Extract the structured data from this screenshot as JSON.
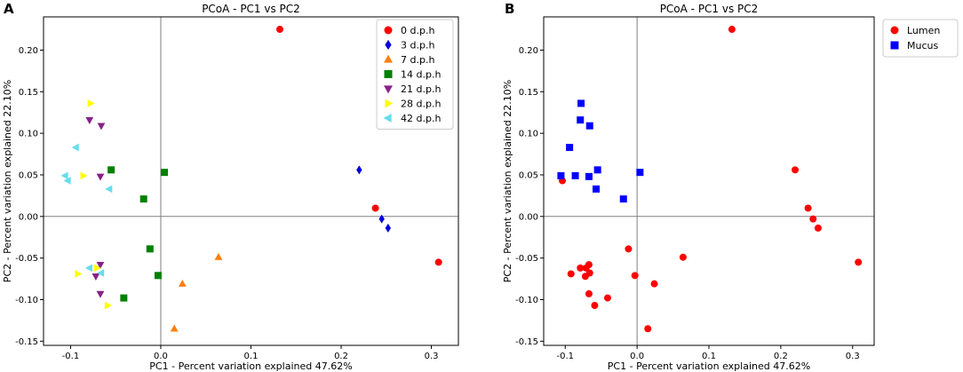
{
  "panels": [
    {
      "panel_label": "A",
      "chart_data": {
        "type": "scatter",
        "title": "PCoA - PC1 vs PC2",
        "xlabel": "PC1 - Percent variation explained 47.62%",
        "ylabel": "PC2 - Percent variation explained 22.10%",
        "xlim": [
          -0.13,
          0.33
        ],
        "ylim": [
          -0.155,
          0.24
        ],
        "xticks": [
          -0.1,
          0.0,
          0.1,
          0.2,
          0.3
        ],
        "xtick_labels": [
          "-0.1",
          "0.0",
          "0.1",
          "0.2",
          "0.3"
        ],
        "yticks": [
          -0.15,
          -0.1,
          -0.05,
          0.0,
          0.05,
          0.1,
          0.15,
          0.2
        ],
        "ytick_labels": [
          "-0.15",
          "-0.10",
          "-0.05",
          "0.00",
          "0.05",
          "0.10",
          "0.15",
          "0.20"
        ],
        "zero_lines": true,
        "legend_position": "upper-right",
        "series": [
          {
            "name": "0 d.p.h",
            "marker": "circle",
            "color": "#ff0000",
            "points": [
              [
                0.132,
                0.225
              ],
              [
                0.238,
                0.01
              ],
              [
                0.308,
                -0.055
              ]
            ]
          },
          {
            "name": "3 d.p.h",
            "marker": "diamond",
            "color": "#0000dd",
            "points": [
              [
                0.22,
                0.056
              ],
              [
                0.245,
                -0.003
              ],
              [
                0.252,
                -0.014
              ]
            ]
          },
          {
            "name": "7 d.p.h",
            "marker": "triangle-up",
            "color": "#ff7f0e",
            "points": [
              [
                0.064,
                -0.049
              ],
              [
                0.024,
                -0.081
              ],
              [
                0.015,
                -0.135
              ]
            ]
          },
          {
            "name": "14 d.p.h",
            "marker": "square",
            "color": "#008000",
            "points": [
              [
                -0.055,
                0.056
              ],
              [
                0.004,
                0.053
              ],
              [
                -0.019,
                0.021
              ],
              [
                -0.012,
                -0.039
              ],
              [
                -0.003,
                -0.071
              ],
              [
                -0.041,
                -0.098
              ]
            ]
          },
          {
            "name": "21 d.p.h",
            "marker": "triangle-down",
            "color": "#882288",
            "points": [
              [
                -0.079,
                0.116
              ],
              [
                -0.066,
                0.109
              ],
              [
                -0.067,
                0.048
              ],
              [
                -0.067,
                -0.058
              ],
              [
                -0.072,
                -0.072
              ],
              [
                -0.067,
                -0.093
              ]
            ]
          },
          {
            "name": "28 d.p.h",
            "marker": "triangle-right",
            "color": "#ffff00",
            "points": [
              [
                -0.078,
                0.136
              ],
              [
                -0.086,
                0.049
              ],
              [
                -0.092,
                -0.069
              ],
              [
                -0.071,
                -0.062
              ],
              [
                -0.059,
                -0.107
              ]
            ]
          },
          {
            "name": "42 d.p.h",
            "marker": "triangle-left",
            "color": "#66ddee",
            "points": [
              [
                -0.094,
                0.083
              ],
              [
                -0.106,
                0.049
              ],
              [
                -0.103,
                0.043
              ],
              [
                -0.057,
                0.033
              ],
              [
                -0.079,
                -0.062
              ],
              [
                -0.066,
                -0.068
              ]
            ]
          }
        ]
      }
    },
    {
      "panel_label": "B",
      "chart_data": {
        "type": "scatter",
        "title": "PCoA - PC1 vs PC2",
        "xlabel": "PC1 - Percent variation explained 47.62%",
        "ylabel": "PC2 - Percent variation explained 22.10%",
        "xlim": [
          -0.13,
          0.33
        ],
        "ylim": [
          -0.155,
          0.24
        ],
        "xticks": [
          -0.1,
          0.0,
          0.1,
          0.2,
          0.3
        ],
        "xtick_labels": [
          "-0.1",
          "0.0",
          "0.1",
          "0.2",
          "0.3"
        ],
        "yticks": [
          -0.15,
          -0.1,
          -0.05,
          0.0,
          0.05,
          0.1,
          0.15,
          0.2
        ],
        "ytick_labels": [
          "-0.15",
          "-0.10",
          "-0.05",
          "0.00",
          "0.05",
          "0.10",
          "0.15",
          "0.20"
        ],
        "zero_lines": true,
        "legend_position": "outside-upper-right",
        "series": [
          {
            "name": "Lumen",
            "marker": "circle",
            "color": "#ff0000",
            "points": [
              [
                0.132,
                0.225
              ],
              [
                0.22,
                0.056
              ],
              [
                0.238,
                0.01
              ],
              [
                0.245,
                -0.003
              ],
              [
                0.252,
                -0.014
              ],
              [
                0.308,
                -0.055
              ],
              [
                0.064,
                -0.049
              ],
              [
                0.024,
                -0.081
              ],
              [
                0.015,
                -0.135
              ],
              [
                -0.012,
                -0.039
              ],
              [
                -0.003,
                -0.071
              ],
              [
                -0.041,
                -0.098
              ],
              [
                -0.104,
                0.043
              ],
              [
                -0.092,
                -0.069
              ],
              [
                -0.079,
                -0.062
              ],
              [
                -0.071,
                -0.062
              ],
              [
                -0.067,
                -0.058
              ],
              [
                -0.072,
                -0.072
              ],
              [
                -0.066,
                -0.068
              ],
              [
                -0.067,
                -0.093
              ],
              [
                -0.059,
                -0.107
              ]
            ]
          },
          {
            "name": "Mucus",
            "marker": "square",
            "color": "#0000ff",
            "points": [
              [
                -0.078,
                0.136
              ],
              [
                -0.079,
                0.116
              ],
              [
                -0.066,
                0.109
              ],
              [
                -0.094,
                0.083
              ],
              [
                -0.106,
                0.049
              ],
              [
                -0.086,
                0.049
              ],
              [
                -0.067,
                0.048
              ],
              [
                -0.055,
                0.056
              ],
              [
                -0.057,
                0.033
              ],
              [
                0.004,
                0.053
              ],
              [
                -0.019,
                0.021
              ]
            ]
          }
        ]
      }
    }
  ]
}
